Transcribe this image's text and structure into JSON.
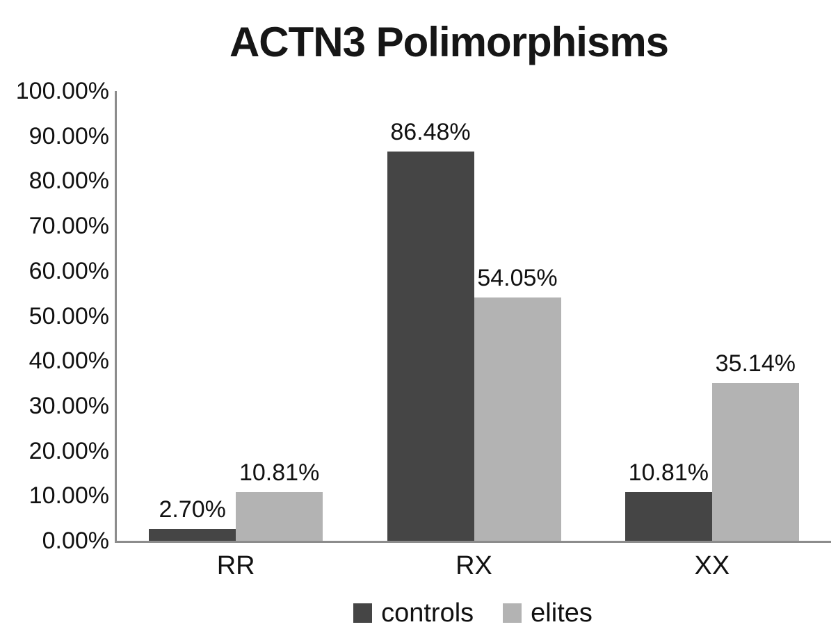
{
  "chart_data": {
    "type": "bar",
    "title": "ACTN3 Polimorphisms",
    "categories": [
      "RR",
      "RX",
      "XX"
    ],
    "series": [
      {
        "name": "controls",
        "color": "#454545",
        "values": [
          2.7,
          86.48,
          10.81
        ],
        "labels": [
          "2.70%",
          "86.48%",
          "10.81%"
        ]
      },
      {
        "name": "elites",
        "color": "#b3b3b3",
        "values": [
          10.81,
          54.05,
          35.14
        ],
        "labels": [
          "10.81%",
          "54.05%",
          "35.14%"
        ]
      }
    ],
    "xlabel": "",
    "ylabel": "",
    "ylim": [
      0,
      100
    ],
    "yticks": [
      "0.00%",
      "10.00%",
      "20.00%",
      "30.00%",
      "40.00%",
      "50.00%",
      "60.00%",
      "70.00%",
      "80.00%",
      "90.00%",
      "100.00%"
    ],
    "grid": false,
    "legend_position": "bottom",
    "colors": {
      "axis": "#8c8c8c",
      "text": "#111111",
      "background": "#ffffff"
    }
  }
}
